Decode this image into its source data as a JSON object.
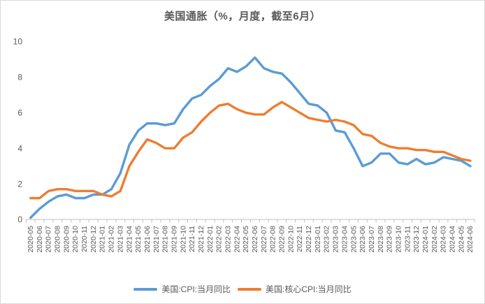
{
  "chart_data": {
    "type": "line",
    "title": "美国通胀（%，月度，截至6月）",
    "xlabel": "",
    "ylabel": "",
    "ylim": [
      0,
      10
    ],
    "yticks": [
      0,
      2,
      4,
      6,
      8,
      10
    ],
    "grid": false,
    "legend_position": "bottom",
    "x": [
      "2020-05",
      "2020-06",
      "2020-07",
      "2020-08",
      "2020-09",
      "2020-10",
      "2020-11",
      "2020-12",
      "2021-01",
      "2021-02",
      "2021-03",
      "2021-04",
      "2021-05",
      "2021-06",
      "2021-07",
      "2021-08",
      "2021-09",
      "2021-10",
      "2021-11",
      "2021-12",
      "2022-01",
      "2022-02",
      "2022-03",
      "2022-04",
      "2022-05",
      "2022-06",
      "2022-07",
      "2022-08",
      "2022-09",
      "2022-10",
      "2022-11",
      "2022-12",
      "2023-01",
      "2023-02",
      "2023-03",
      "2023-04",
      "2023-05",
      "2023-06",
      "2023-07",
      "2023-08",
      "2023-09",
      "2023-10",
      "2023-11",
      "2023-12",
      "2024-01",
      "2024-02",
      "2024-03",
      "2024-04",
      "2024-05",
      "2024-06"
    ],
    "series": [
      {
        "name": "美国:CPI:当月同比",
        "color": "#5B9BD5",
        "values": [
          0.1,
          0.6,
          1.0,
          1.3,
          1.4,
          1.2,
          1.2,
          1.4,
          1.4,
          1.7,
          2.6,
          4.2,
          5.0,
          5.4,
          5.4,
          5.3,
          5.4,
          6.2,
          6.8,
          7.0,
          7.5,
          7.9,
          8.5,
          8.3,
          8.6,
          9.1,
          8.5,
          8.3,
          8.2,
          7.7,
          7.1,
          6.5,
          6.4,
          6.0,
          5.0,
          4.9,
          4.0,
          3.0,
          3.2,
          3.7,
          3.7,
          3.2,
          3.1,
          3.4,
          3.1,
          3.2,
          3.5,
          3.4,
          3.3,
          3.0
        ]
      },
      {
        "name": "美国:核心CPI:当月同比",
        "color": "#ED7D31",
        "values": [
          1.2,
          1.2,
          1.6,
          1.7,
          1.7,
          1.6,
          1.6,
          1.6,
          1.4,
          1.3,
          1.6,
          3.0,
          3.8,
          4.5,
          4.3,
          4.0,
          4.0,
          4.6,
          4.9,
          5.5,
          6.0,
          6.4,
          6.5,
          6.2,
          6.0,
          5.9,
          5.9,
          6.3,
          6.6,
          6.3,
          6.0,
          5.7,
          5.6,
          5.5,
          5.6,
          5.5,
          5.3,
          4.8,
          4.7,
          4.3,
          4.1,
          4.0,
          4.0,
          3.9,
          3.9,
          3.8,
          3.8,
          3.6,
          3.4,
          3.3
        ]
      }
    ]
  },
  "colors": {
    "axis_line": "#BFBFBF",
    "tick_label": "#595959",
    "title_text": "#595959",
    "border": "#D9D9D9",
    "background": "#FFFFFF"
  }
}
